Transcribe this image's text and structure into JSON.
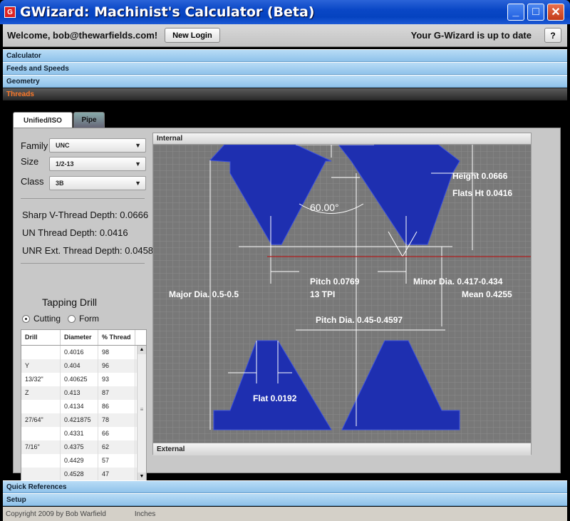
{
  "window": {
    "title": "GWizard: Machinist's Calculator (Beta)",
    "icon": "app-logo-icon"
  },
  "header": {
    "welcome": "Welcome, bob@thewarfields.com!",
    "new_login": "New Login",
    "status": "Your G-Wizard is up to date",
    "help": "?"
  },
  "accordion": {
    "top": [
      "Calculator",
      "Feeds and Speeds",
      "Geometry",
      "Threads"
    ],
    "active": "Threads",
    "bottom": [
      "Quick References",
      "Setup"
    ]
  },
  "tabs": [
    "Unified/ISO",
    "Pipe"
  ],
  "form": {
    "family_label": "Family",
    "family_value": "UNC",
    "size_label": "Size",
    "size_value": "1/2-13",
    "class_label": "Class",
    "class_value": "3B"
  },
  "depths": {
    "sharp_v": "Sharp V-Thread Depth: 0.0666",
    "un": "UN Thread Depth: 0.0416",
    "unr": "UNR Ext. Thread Depth: 0.0458"
  },
  "tapping": {
    "title": "Tapping Drill",
    "cutting": "Cutting",
    "form": "Form",
    "selected": "Cutting"
  },
  "drill_table": {
    "headers": [
      "Drill",
      "Diameter",
      "% Thread"
    ],
    "rows": [
      [
        "",
        "0.4016",
        "98"
      ],
      [
        "Y",
        "0.404",
        "96"
      ],
      [
        "13/32\"",
        "0.40625",
        "93"
      ],
      [
        "Z",
        "0.413",
        "87"
      ],
      [
        "",
        "0.4134",
        "86"
      ],
      [
        "27/64\"",
        "0.421875",
        "78"
      ],
      [
        "",
        "0.4331",
        "66"
      ],
      [
        "7/16\"",
        "0.4375",
        "62"
      ],
      [
        "",
        "0.4429",
        "57"
      ],
      [
        "",
        "0.4528",
        "47"
      ]
    ]
  },
  "diagram": {
    "internal": "Internal",
    "external": "External",
    "angle": "60.00°",
    "height": "Height 0.0666",
    "flats_ht": "Flats Ht 0.0416",
    "pitch": "Pitch 0.0769",
    "tpi": "13 TPI",
    "minor": "Minor Dia. 0.417-0.434",
    "mean": "Mean 0.4255",
    "major": "Major Dia. 0.5-0.5",
    "pitch_dia": "Pitch Dia. 0.45-0.4597",
    "flat": "Flat 0.0192",
    "thread_color": "#1e2fb0"
  },
  "footer": {
    "copyright": "Copyright 2009 by Bob Warfield",
    "units": "Inches"
  }
}
